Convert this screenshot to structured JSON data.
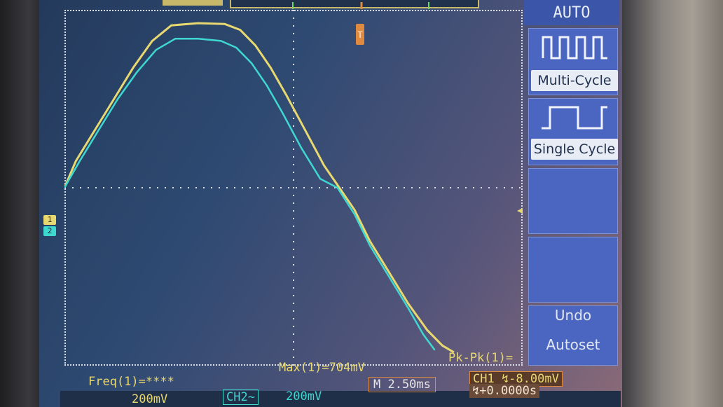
{
  "side_menu": {
    "title": "AUTO",
    "multi_cycle": "Multi-Cycle",
    "single_cycle": "Single Cycle",
    "undo": "Undo",
    "autoset": "Autoset"
  },
  "measurements": {
    "freq": "Freq(1)=****",
    "max": "Max(1)=704mV",
    "pkpk": "Pk-Pk(1)="
  },
  "status_bar": {
    "ch1_scale": "200mV",
    "ch2_label": "CH2~",
    "ch2_scale": "200mV",
    "timebase": "M 2.50ms",
    "trigger": "CH1 ↯-8.00mV",
    "trigger_offset": "↯+0.0000s"
  },
  "markers": {
    "ch1": "1",
    "ch2": "2"
  },
  "colors": {
    "ch1": "#e8d870",
    "ch2": "#3fd8d0",
    "grid": "#d8dde6",
    "menu": "#4a66c0"
  },
  "chart_data": {
    "type": "line",
    "title": "",
    "xlabel": "",
    "ylabel": "",
    "grid": true,
    "xlim": [
      0,
      12
    ],
    "ylim": [
      -4,
      4
    ],
    "series": [
      {
        "name": "CH1",
        "x": [
          0,
          0.3,
          0.8,
          1.3,
          1.8,
          2.3,
          2.8,
          3.5,
          4.2,
          4.6,
          5.0,
          5.4,
          5.8,
          6.3,
          6.8,
          7.2,
          7.6,
          8.0,
          8.5,
          9.0,
          9.5,
          9.9,
          10.2
        ],
        "y": [
          0.0,
          0.6,
          1.3,
          2.0,
          2.7,
          3.3,
          3.65,
          3.7,
          3.68,
          3.55,
          3.2,
          2.7,
          2.1,
          1.3,
          0.5,
          0.0,
          -0.5,
          -1.2,
          -1.9,
          -2.6,
          -3.2,
          -3.55,
          -3.7
        ]
      },
      {
        "name": "CH2",
        "x": [
          0,
          0.4,
          0.9,
          1.4,
          1.9,
          2.4,
          2.9,
          3.5,
          4.1,
          4.5,
          4.9,
          5.3,
          5.7,
          6.2,
          6.7,
          7.15,
          7.6,
          8.0,
          8.5,
          9.0,
          9.4,
          9.7
        ],
        "y": [
          0.0,
          0.6,
          1.3,
          2.0,
          2.6,
          3.1,
          3.35,
          3.35,
          3.3,
          3.15,
          2.8,
          2.3,
          1.7,
          0.9,
          0.2,
          0.0,
          -0.6,
          -1.3,
          -2.0,
          -2.7,
          -3.3,
          -3.65
        ]
      }
    ]
  }
}
